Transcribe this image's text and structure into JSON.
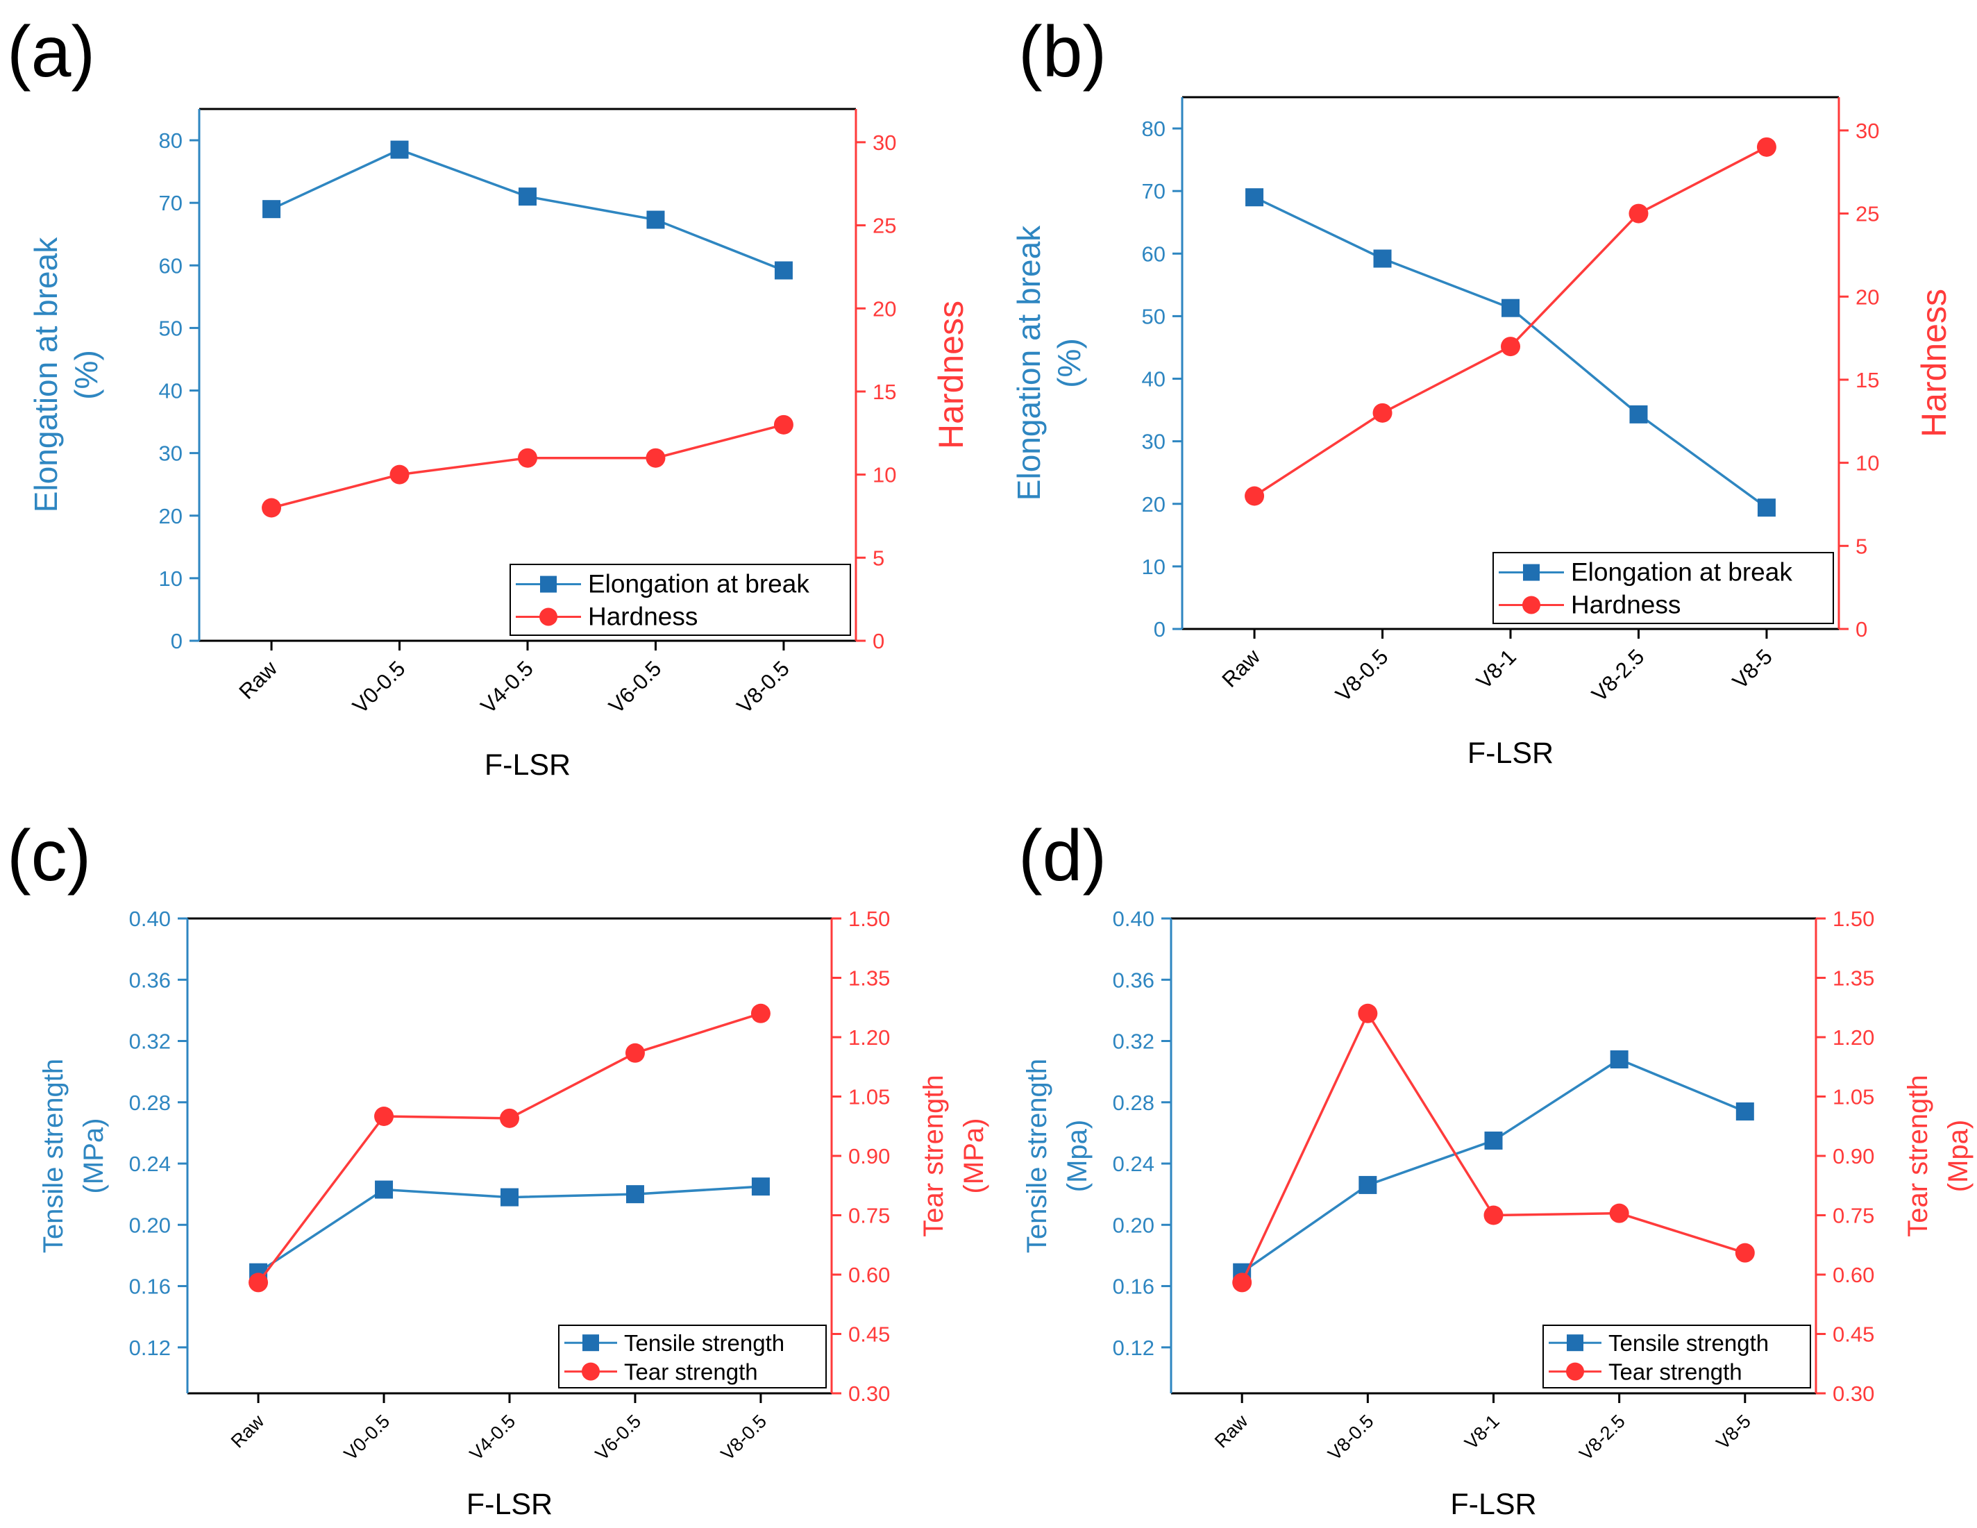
{
  "colors": {
    "left": "#2e86c1",
    "right": "#ff3b3b",
    "left_marker": "#1f6fb2",
    "right_marker": "#ff3333",
    "axis": "#000000"
  },
  "chart_data": [
    {
      "type": "line",
      "panel_label": "(a)",
      "xlabel": "F-LSR",
      "categories": [
        "Raw",
        "V0-0.5",
        "V4-0.5",
        "V6-0.5",
        "V8-0.5"
      ],
      "y_left": {
        "label_lines": [
          "Elongation at break",
          "(%)"
        ],
        "lim": [
          0,
          85
        ],
        "ticks": [
          0,
          10,
          20,
          30,
          40,
          50,
          60,
          70,
          80
        ],
        "tick_labels": [
          "0",
          "10",
          "20",
          "30",
          "40",
          "50",
          "60",
          "70",
          "80"
        ]
      },
      "y_right": {
        "label_lines": [
          "Hardness"
        ],
        "lim": [
          0,
          32
        ],
        "ticks": [
          0,
          5,
          10,
          15,
          20,
          25,
          30
        ],
        "tick_labels": [
          "0",
          "5",
          "10",
          "15",
          "20",
          "25",
          "30"
        ]
      },
      "series": [
        {
          "name": "Elongation at break",
          "axis": "left",
          "marker": "square",
          "values": [
            69,
            78.5,
            71,
            67.3,
            59.2
          ]
        },
        {
          "name": "Hardness",
          "axis": "right",
          "marker": "circle",
          "values": [
            8,
            10,
            11,
            11,
            13
          ]
        }
      ],
      "legend_position": "bottom-right"
    },
    {
      "type": "line",
      "panel_label": "(b)",
      "xlabel": "F-LSR",
      "categories": [
        "Raw",
        "V8-0.5",
        "V8-1",
        "V8-2.5",
        "V8-5"
      ],
      "y_left": {
        "label_lines": [
          "Elongation at break",
          "(%)"
        ],
        "lim": [
          0,
          85
        ],
        "ticks": [
          0,
          10,
          20,
          30,
          40,
          50,
          60,
          70,
          80
        ],
        "tick_labels": [
          "0",
          "10",
          "20",
          "30",
          "40",
          "50",
          "60",
          "70",
          "80"
        ]
      },
      "y_right": {
        "label_lines": [
          "Hardness"
        ],
        "lim": [
          0,
          32
        ],
        "ticks": [
          0,
          5,
          10,
          15,
          20,
          25,
          30
        ],
        "tick_labels": [
          "0",
          "5",
          "10",
          "15",
          "20",
          "25",
          "30"
        ]
      },
      "series": [
        {
          "name": "Elongation at break",
          "axis": "left",
          "marker": "square",
          "values": [
            69,
            59.2,
            51.3,
            34.3,
            19.4
          ]
        },
        {
          "name": "Hardness",
          "axis": "right",
          "marker": "circle",
          "values": [
            8,
            13,
            17,
            25,
            29
          ]
        }
      ],
      "legend_position": "bottom-right"
    },
    {
      "type": "line",
      "panel_label": "(c)",
      "xlabel": "F-LSR",
      "categories": [
        "Raw",
        "V0-0.5",
        "V4-0.5",
        "V6-0.5",
        "V8-0.5"
      ],
      "y_left": {
        "label_lines": [
          "Tensile strength",
          "(MPa)"
        ],
        "lim": [
          0.09,
          0.4
        ],
        "ticks": [
          0.12,
          0.16,
          0.2,
          0.24,
          0.28,
          0.32,
          0.36,
          0.4
        ],
        "tick_labels": [
          "0.12",
          "0.16",
          "0.20",
          "0.24",
          "0.28",
          "0.32",
          "0.36",
          "0.40"
        ]
      },
      "y_right": {
        "label_lines": [
          "Tear strength",
          "(MPa)"
        ],
        "lim": [
          0.3,
          1.5
        ],
        "ticks": [
          0.3,
          0.45,
          0.6,
          0.75,
          0.9,
          1.05,
          1.2,
          1.35,
          1.5
        ],
        "tick_labels": [
          "0.30",
          "0.45",
          "0.60",
          "0.75",
          "0.90",
          "1.05",
          "1.20",
          "1.35",
          "1.50"
        ]
      },
      "series": [
        {
          "name": "Tensile strength",
          "axis": "left",
          "marker": "square",
          "values": [
            0.169,
            0.223,
            0.218,
            0.22,
            0.225
          ]
        },
        {
          "name": "Tear strength",
          "axis": "right",
          "marker": "circle",
          "values": [
            0.58,
            1.0,
            0.995,
            1.16,
            1.26
          ]
        }
      ],
      "legend_position": "bottom-right"
    },
    {
      "type": "line",
      "panel_label": "(d)",
      "xlabel": "F-LSR",
      "categories": [
        "Raw",
        "V8-0.5",
        "V8-1",
        "V8-2.5",
        "V8-5"
      ],
      "y_left": {
        "label_lines": [
          "Tensile strength",
          "(Mpa)"
        ],
        "lim": [
          0.09,
          0.4
        ],
        "ticks": [
          0.12,
          0.16,
          0.2,
          0.24,
          0.28,
          0.32,
          0.36,
          0.4
        ],
        "tick_labels": [
          "0.12",
          "0.16",
          "0.20",
          "0.24",
          "0.28",
          "0.32",
          "0.36",
          "0.40"
        ]
      },
      "y_right": {
        "label_lines": [
          "Tear strength",
          "(Mpa)"
        ],
        "lim": [
          0.3,
          1.5
        ],
        "ticks": [
          0.3,
          0.45,
          0.6,
          0.75,
          0.9,
          1.05,
          1.2,
          1.35,
          1.5
        ],
        "tick_labels": [
          "0.30",
          "0.45",
          "0.60",
          "0.75",
          "0.90",
          "1.05",
          "1.20",
          "1.35",
          "1.50"
        ]
      },
      "series": [
        {
          "name": "Tensile strength",
          "axis": "left",
          "marker": "square",
          "values": [
            0.169,
            0.226,
            0.255,
            0.308,
            0.274
          ]
        },
        {
          "name": "Tear strength",
          "axis": "right",
          "marker": "circle",
          "values": [
            0.58,
            1.26,
            0.75,
            0.755,
            0.655
          ]
        }
      ],
      "legend_position": "bottom-right"
    }
  ]
}
